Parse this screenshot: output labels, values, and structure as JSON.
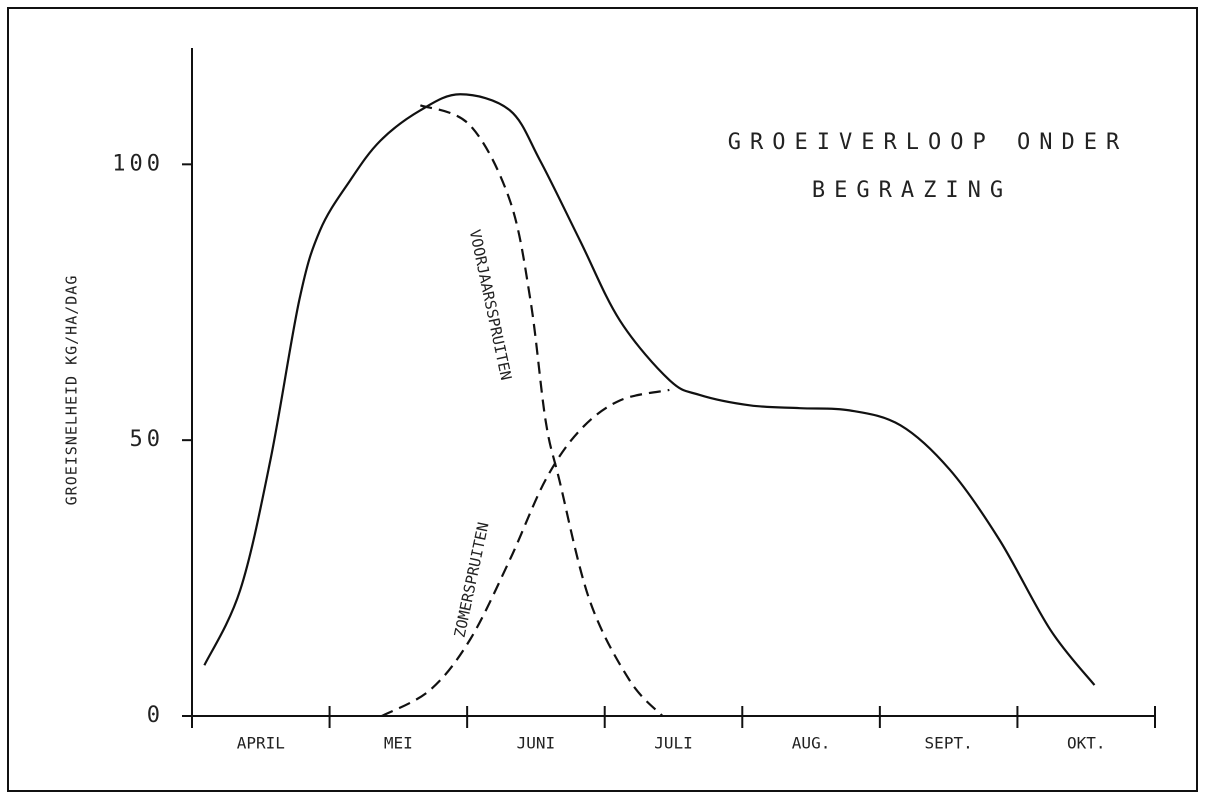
{
  "chart_data": {
    "type": "line",
    "title": [
      "GROEIVERLOOP ONDER",
      "BEGRAZING"
    ],
    "y_label": "GROEISNELHEID KG/HA/DAG",
    "categories": [
      "APRIL",
      "MEI",
      "JUNI",
      "JULI",
      "AUG.",
      "SEPT.",
      "OKT."
    ],
    "xlim": [
      0,
      7
    ],
    "ylim": [
      0,
      120
    ],
    "yticks": [
      0,
      50,
      100
    ],
    "series": [
      {
        "color": "#111111",
        "dash": false,
        "x": [
          0.09,
          0.35,
          0.57,
          0.78,
          0.93,
          1.15,
          1.37,
          1.66,
          1.95,
          2.31,
          2.53,
          2.82,
          3.11,
          3.47,
          3.69,
          4.06,
          4.42,
          4.78,
          5.15,
          5.51,
          5.87,
          6.24,
          6.56
        ],
        "values": [
          9.2,
          22.8,
          46.4,
          75.4,
          88,
          97.1,
          104.3,
          109.8,
          112.7,
          109.8,
          100.7,
          86.2,
          71.7,
          60.9,
          58.2,
          56.3,
          55.8,
          55.4,
          52.7,
          44.6,
          31.9,
          15.6,
          5.6
        ]
      },
      {
        "name": "VOORJAARSSPRUITEN",
        "color": "#111111",
        "dash": true,
        "x": [
          1.66,
          2.02,
          2.31,
          2.46,
          2.57,
          2.67,
          2.89,
          3.18,
          3.42
        ],
        "values": [
          110.7,
          107.1,
          93.5,
          75.4,
          53.6,
          42.8,
          21,
          6.5,
          0
        ]
      },
      {
        "name": "ZOMERSPRUITEN",
        "color": "#111111",
        "dash": true,
        "x": [
          1.38,
          1.73,
          2.02,
          2.31,
          2.57,
          2.82,
          3.11,
          3.47
        ],
        "values": [
          0,
          4.7,
          13.8,
          28.3,
          42.8,
          51.8,
          57.2,
          59.1
        ]
      }
    ]
  }
}
